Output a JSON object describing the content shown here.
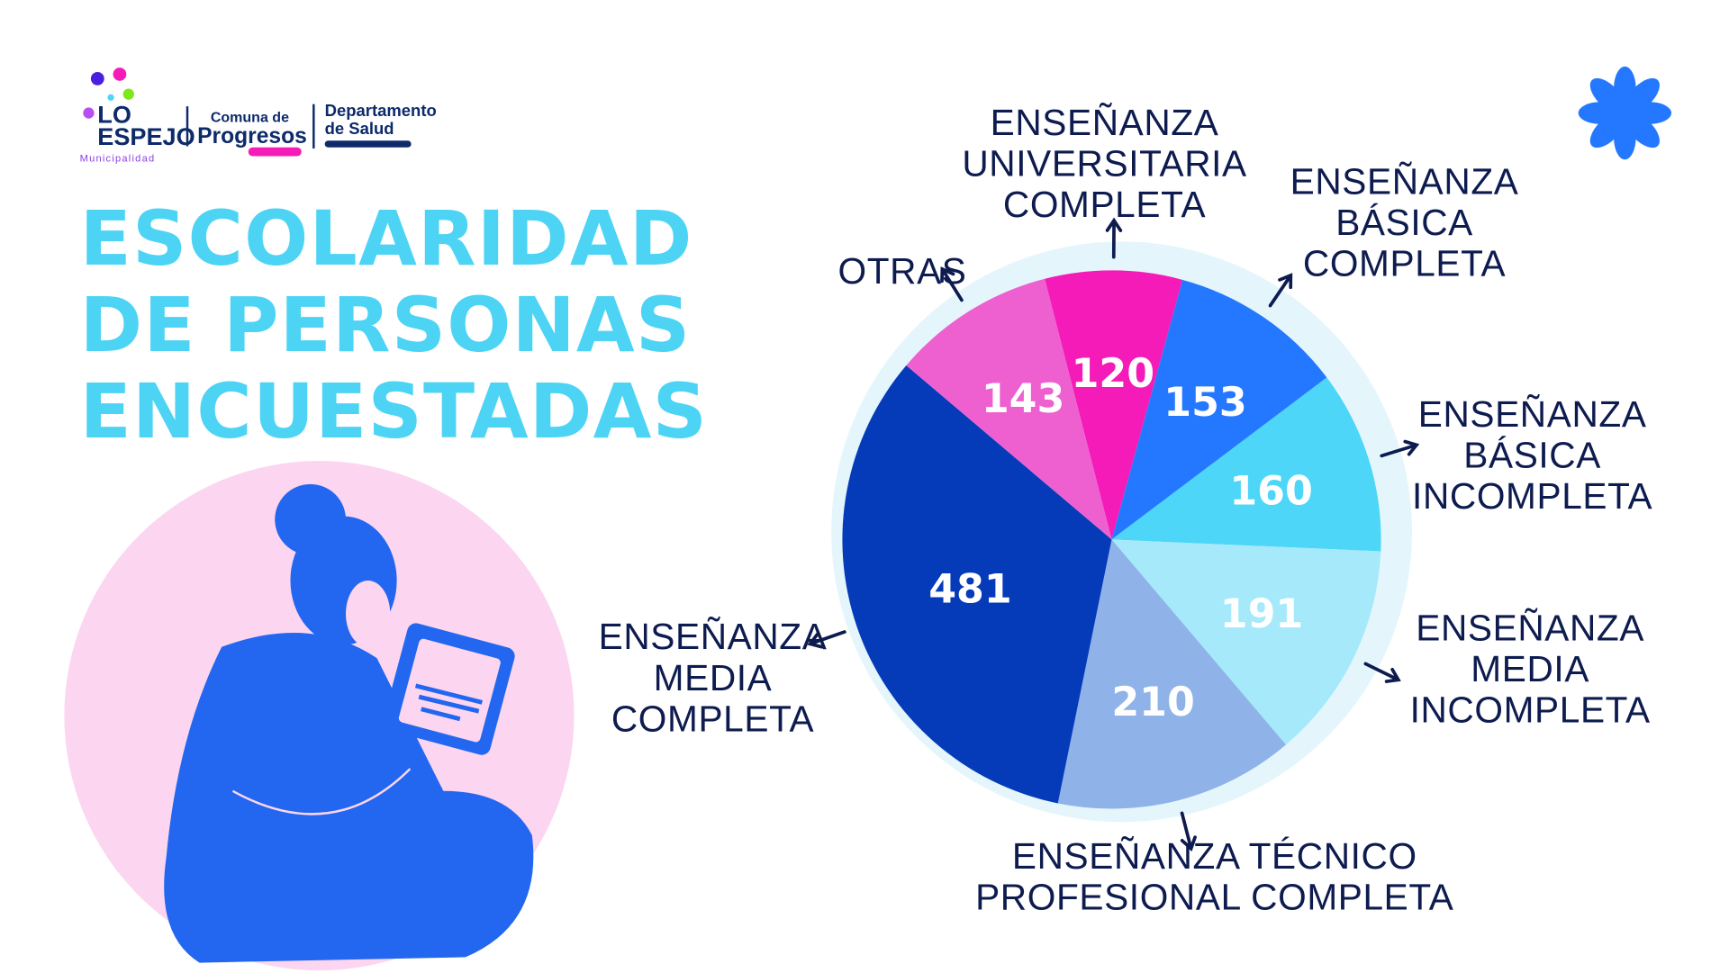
{
  "logos": {
    "municipality_name": "LO ESPEJO",
    "municipality_sub": "Municipalidad",
    "comuna_line1": "Comuna de",
    "comuna_line2": "Progresos",
    "dept_line1": "Departamento",
    "dept_line2": "de Salud"
  },
  "chart_data": {
    "type": "pie",
    "title": "ESCOLARIDAD DE PERSONAS ENCUESTADAS",
    "title_lines": [
      "ESCOLARIDAD",
      "DE PERSONAS",
      "ENCUESTADAS"
    ],
    "categories": [
      "ENSEÑANZA UNIVERSITARIA COMPLETA",
      "ENSEÑANZA BÁSICA COMPLETA",
      "ENSEÑANZA BÁSICA INCOMPLETA",
      "ENSEÑANZA MEDIA INCOMPLETA",
      "ENSEÑANZA TÉCNICO PROFESIONAL COMPLETA",
      "ENSEÑANZA MEDIA COMPLETA",
      "OTRAS"
    ],
    "values": [
      120,
      153,
      160,
      191,
      210,
      481,
      143
    ],
    "colors": [
      "#f51bb8",
      "#2478ff",
      "#4dd6f8",
      "#a5e9fb",
      "#8fb3e8",
      "#053bb8",
      "#ee5fd0"
    ],
    "label_lines": [
      [
        "ENSEÑANZA",
        "UNIVERSITARIA",
        "COMPLETA"
      ],
      [
        "ENSEÑANZA",
        "BÁSICA",
        "COMPLETA"
      ],
      [
        "ENSEÑANZA",
        "BÁSICA",
        "INCOMPLETA"
      ],
      [
        "ENSEÑANZA",
        "MEDIA",
        "INCOMPLETA"
      ],
      [
        "ENSEÑANZA TÉCNICO",
        "PROFESIONAL COMPLETA"
      ],
      [
        "ENSEÑANZA",
        "MEDIA",
        "COMPLETA"
      ],
      [
        "OTRAS"
      ]
    ],
    "legend": "none (callout labels with arrows)"
  }
}
